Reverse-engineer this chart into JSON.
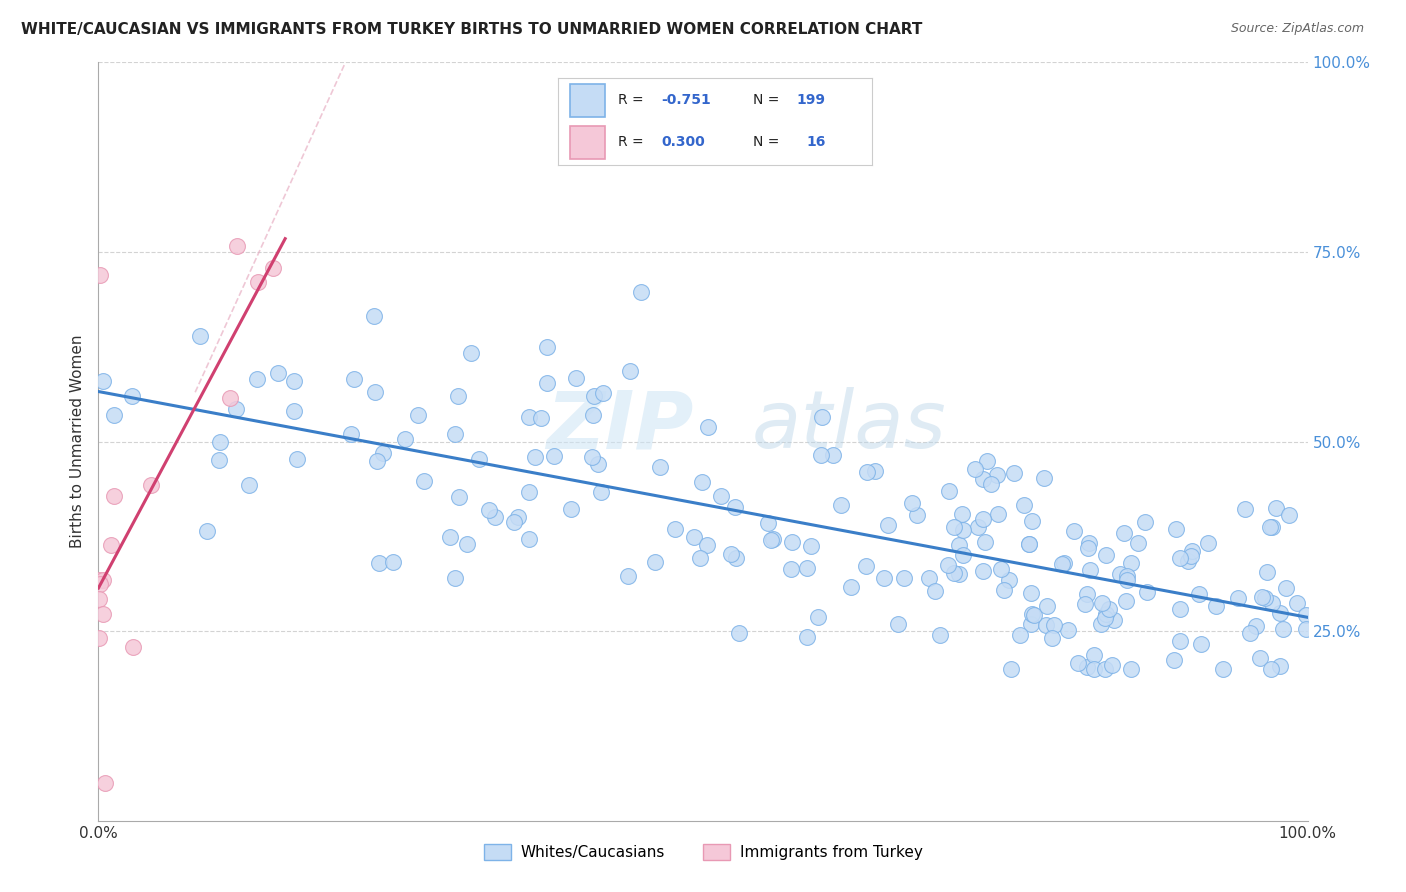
{
  "title": "WHITE/CAUCASIAN VS IMMIGRANTS FROM TURKEY BIRTHS TO UNMARRIED WOMEN CORRELATION CHART",
  "source": "Source: ZipAtlas.com",
  "ylabel": "Births to Unmarried Women",
  "watermark_zip": "ZIP",
  "watermark_atlas": "atlas",
  "blue_scatter_face": "#c5dcf5",
  "blue_scatter_edge": "#7eb3e8",
  "pink_scatter_face": "#f5c8d8",
  "pink_scatter_edge": "#e899b4",
  "blue_line_color": "#3a7ec8",
  "pink_line_color": "#d04070",
  "pink_dash_color": "#e8b0c4",
  "grid_color": "#c8c8c8",
  "legend_r1": "R = -0.751",
  "legend_n1": "N = 199",
  "legend_r2": "R = 0.300",
  "legend_n2": "N =  16",
  "label1": "Whites/Caucasians",
  "label2": "Immigrants from Turkey",
  "blue_text_color": "#4a90d9",
  "r_color": "#3366cc",
  "n_color": "#3366cc"
}
